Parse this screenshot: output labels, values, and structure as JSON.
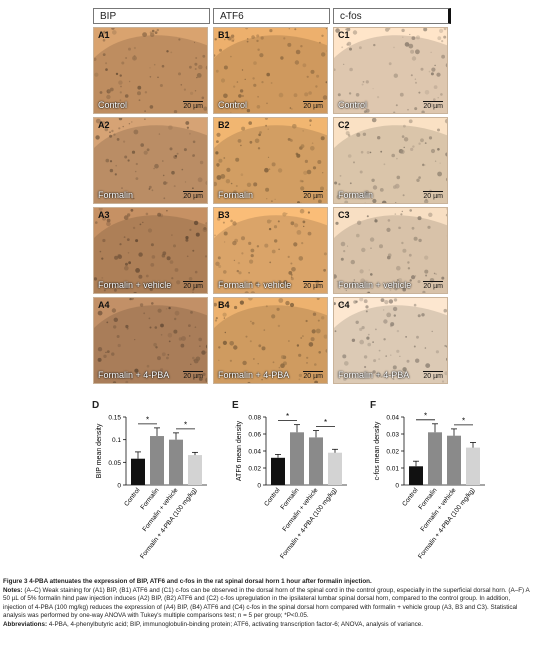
{
  "columns": [
    "BIP",
    "ATF6",
    "c-fos"
  ],
  "scale_bar": "20 µm",
  "panels": [
    [
      {
        "label": "A1",
        "condition": "Control",
        "tone": "#b88a5e"
      },
      {
        "label": "B1",
        "condition": "Control",
        "tone": "#c9955c"
      },
      {
        "label": "C1",
        "condition": "Control",
        "tone": "#d8c2aa"
      }
    ],
    [
      {
        "label": "A2",
        "condition": "Formalin",
        "tone": "#b58a63"
      },
      {
        "label": "B2",
        "condition": "Formalin",
        "tone": "#cc9a60"
      },
      {
        "label": "C2",
        "condition": "Formalin",
        "tone": "#d4bfa6"
      }
    ],
    [
      {
        "label": "A3",
        "condition": "Formalin + vehicle",
        "tone": "#a87b55"
      },
      {
        "label": "B3",
        "condition": "Formalin + vehicle",
        "tone": "#d4a066"
      },
      {
        "label": "C3",
        "condition": "Formalin + vehicle",
        "tone": "#d2bda5"
      }
    ],
    [
      {
        "label": "A4",
        "condition": "Formalin + 4-PBA",
        "tone": "#a47a57"
      },
      {
        "label": "B4",
        "condition": "Formalin + 4-PBA",
        "tone": "#c9975e"
      },
      {
        "label": "C4",
        "condition": "Formalin + 4-PBA",
        "tone": "#d6c4b0"
      }
    ]
  ],
  "chart_data": [
    {
      "type": "bar",
      "letter": "D",
      "categories": [
        "Control",
        "Formalin",
        "Formalin + vehicle",
        "Formalin + 4-PBA (100 mg/kg)"
      ],
      "values": [
        0.058,
        0.108,
        0.1,
        0.066
      ],
      "errors": [
        0.015,
        0.018,
        0.015,
        0.006
      ],
      "colors": [
        "#111111",
        "#8a8a8a",
        "#8a8a8a",
        "#d3d3d3"
      ],
      "ylabel": "BIP mean density",
      "ylim": [
        0,
        0.15
      ],
      "yticks": [
        "0",
        "0.05",
        "0.1",
        "0.15"
      ],
      "tick_values": [
        0,
        0.05,
        0.1,
        0.15
      ],
      "significance": [
        {
          "from": 0,
          "to": 1,
          "label": "*"
        },
        {
          "from": 2,
          "to": 3,
          "label": "*"
        }
      ]
    },
    {
      "type": "bar",
      "letter": "E",
      "categories": [
        "Control",
        "Formalin",
        "Formalin + vehicle",
        "Formalin + 4-PBA (100 mg/kg)"
      ],
      "values": [
        0.032,
        0.062,
        0.056,
        0.038
      ],
      "errors": [
        0.004,
        0.009,
        0.008,
        0.004
      ],
      "colors": [
        "#111111",
        "#8a8a8a",
        "#8a8a8a",
        "#d3d3d3"
      ],
      "ylabel": "ATF6 mean density",
      "ylim": [
        0,
        0.08
      ],
      "yticks": [
        "0",
        "0.02",
        "0.04",
        "0.06",
        "0.08"
      ],
      "tick_values": [
        0,
        0.02,
        0.04,
        0.06,
        0.08
      ],
      "significance": [
        {
          "from": 0,
          "to": 1,
          "label": "*"
        },
        {
          "from": 2,
          "to": 3,
          "label": "*"
        }
      ]
    },
    {
      "type": "bar",
      "letter": "F",
      "categories": [
        "Control",
        "Formalin",
        "Formalin + vehicle",
        "Formalin + 4-PBA (100 mg/kg)"
      ],
      "values": [
        0.011,
        0.031,
        0.029,
        0.022
      ],
      "errors": [
        0.003,
        0.005,
        0.004,
        0.003
      ],
      "colors": [
        "#111111",
        "#8a8a8a",
        "#8a8a8a",
        "#d3d3d3"
      ],
      "ylabel": "c-fos mean density",
      "ylim": [
        0,
        0.04
      ],
      "yticks": [
        "0",
        "0.01",
        "0.02",
        "0.03",
        "0.04"
      ],
      "tick_values": [
        0,
        0.01,
        0.02,
        0.03,
        0.04
      ],
      "significance": [
        {
          "from": 0,
          "to": 1,
          "label": "*"
        },
        {
          "from": 2,
          "to": 3,
          "label": "*"
        }
      ]
    }
  ],
  "caption": {
    "title": "Figure 3 4-PBA attenuates the expression of BIP, ATF6 and c-fos in the rat spinal dorsal horn 1 hour after formalin injection.",
    "notes_label": "Notes:",
    "notes_text": "(A–C) Weak staining for (A1) BIP, (B1) ATF6 and (C1) c-fos can be observed in the dorsal horn of the spinal cord in the control group, especially in the superficial dorsal horn. (A–F) A 50 µL of 5% formalin hind paw injection induces (A2) BIP, (B2) ATF6 and (C2) c-fos upregulation in the ipsilateral lumbar spinal dorsal horn, compared to the control group. In addition, injection of 4-PBA (100 mg/kg) reduces the expression of (A4) BIP, (B4) ATF6 and (C4) c-fos in the spinal dorsal horn compared with formalin + vehicle group (A3, B3 and C3). Statistical analysis was performed by one-way ANOVA with Tukey's multiple comparisons test; n = 5 per group; *P<0.05.",
    "abbrev_label": "Abbreviations:",
    "abbrev_text": "4-PBA, 4-phenylbutyric acid; BIP, immunoglobulin-binding protein; ATF6, activating transcription factor-6; ANOVA, analysis of variance."
  }
}
